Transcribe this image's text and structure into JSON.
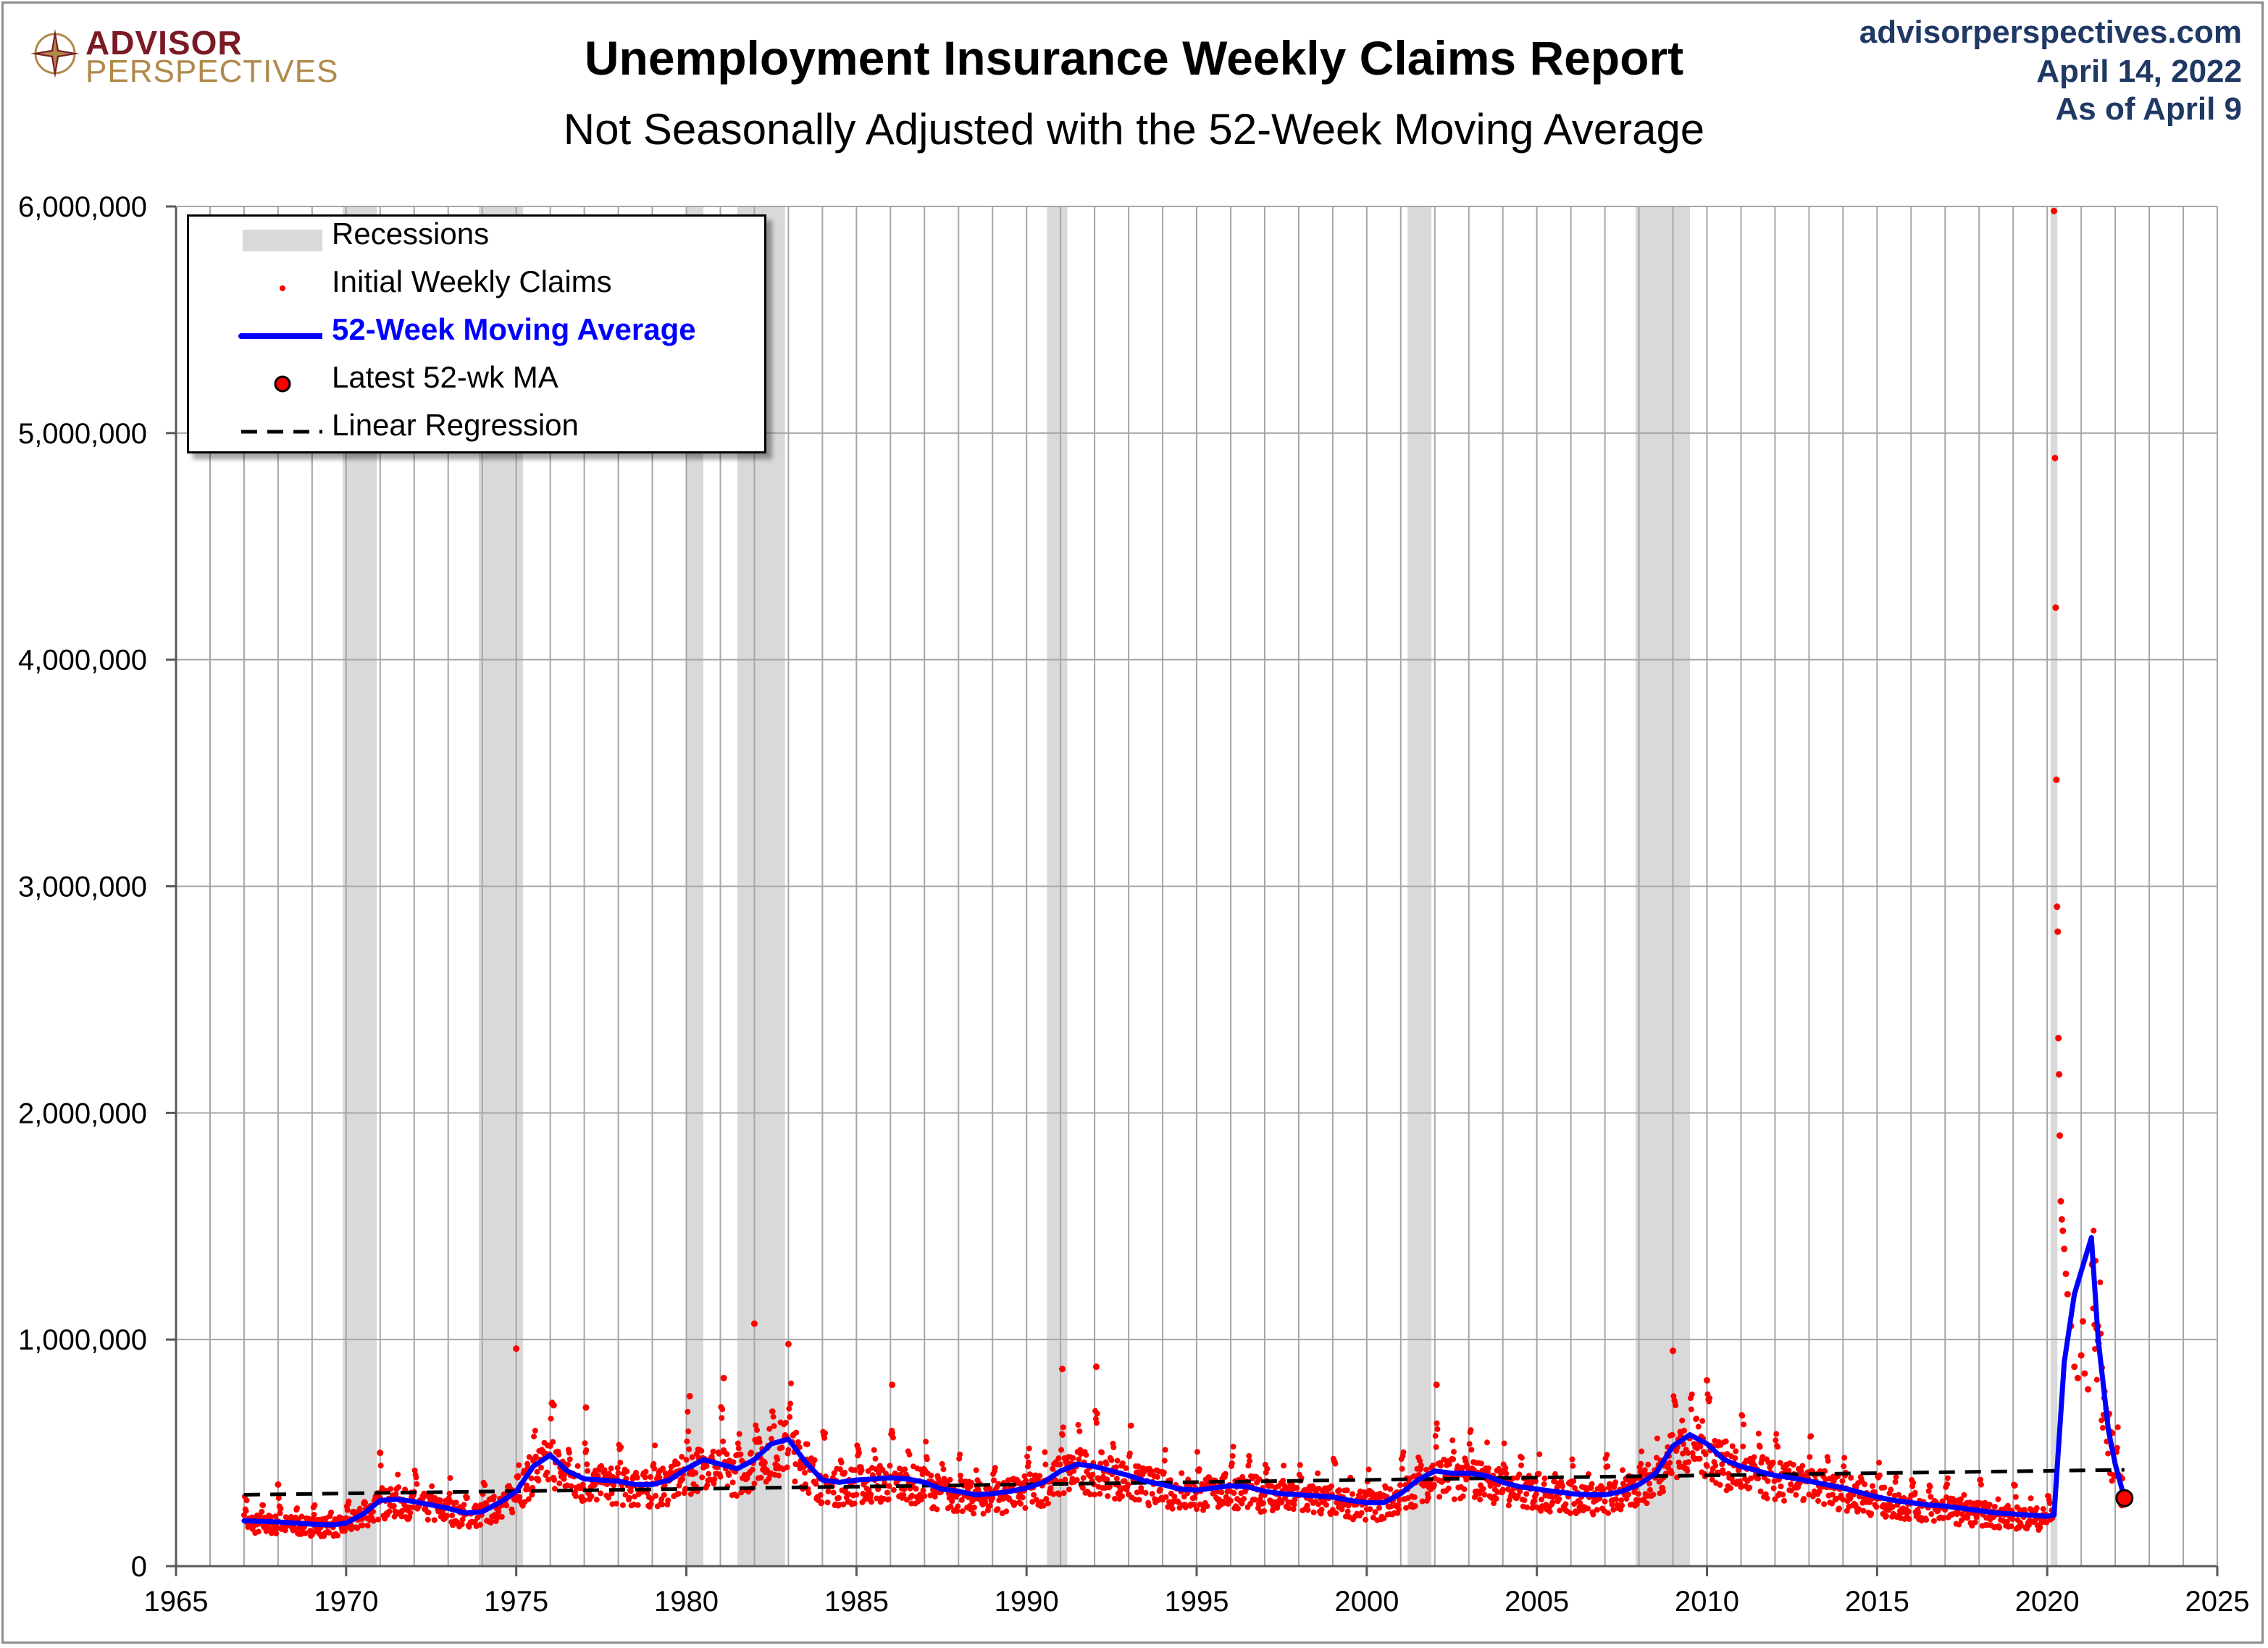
{
  "header": {
    "logo_line1": "ADVISOR",
    "logo_line2": "PERSPECTIVES",
    "title": "Unemployment Insurance Weekly Claims Report",
    "subtitle": "Not Seasonally Adjusted with the 52-Week Moving Average",
    "source_site": "advisorperspectives.com",
    "source_date": "April 14, 2022",
    "source_asof": "As of April 9"
  },
  "legend": {
    "recessions": "Recessions",
    "claims": "Initial Weekly Claims",
    "ma": "52-Week Moving Average",
    "latest": "Latest 52-wk MA",
    "regression": "Linear Regression"
  },
  "colors": {
    "claims": "#ff0000",
    "ma": "#0000ff",
    "recession": "#d9d9d9",
    "grid": "#a6a6a6",
    "regression": "#000000",
    "source_text": "#1f3864"
  },
  "chart_data": {
    "type": "line",
    "title": "Unemployment Insurance Weekly Claims Report",
    "subtitle": "Not Seasonally Adjusted with the 52-Week Moving Average",
    "xlim": [
      1965,
      2025
    ],
    "ylim": [
      0,
      6000000
    ],
    "x_ticks": [
      1965,
      1970,
      1975,
      1980,
      1985,
      1990,
      1995,
      2000,
      2005,
      2010,
      2015,
      2020,
      2025
    ],
    "x_tick_labels": [
      "1965",
      "1970",
      "1975",
      "1980",
      "1985",
      "1990",
      "1995",
      "2000",
      "2005",
      "2010",
      "2015",
      "2020",
      "2025"
    ],
    "y_ticks": [
      0,
      1000000,
      2000000,
      3000000,
      4000000,
      5000000,
      6000000
    ],
    "y_tick_labels": [
      "0",
      "1,000,000",
      "2,000,000",
      "3,000,000",
      "4,000,000",
      "5,000,000",
      "6,000,000"
    ],
    "grid": true,
    "legend_position": "top-left",
    "recessions": [
      [
        1969.9,
        1970.9
      ],
      [
        1973.9,
        1975.2
      ],
      [
        1980.0,
        1980.5
      ],
      [
        1981.5,
        1982.9
      ],
      [
        1990.6,
        1991.2
      ],
      [
        2001.2,
        2001.9
      ],
      [
        2007.9,
        2009.5
      ],
      [
        2020.1,
        2020.3
      ]
    ],
    "series": [
      {
        "name": "52-Week Moving Average",
        "x": [
          1967.0,
          1968.0,
          1968.5,
          1969.0,
          1969.6,
          1970.0,
          1970.5,
          1971.0,
          1971.5,
          1972.0,
          1972.5,
          1973.0,
          1973.5,
          1974.0,
          1974.5,
          1975.0,
          1975.5,
          1976.0,
          1976.5,
          1977.0,
          1977.5,
          1978.0,
          1978.5,
          1979.0,
          1979.5,
          1980.0,
          1980.5,
          1981.0,
          1981.5,
          1982.0,
          1982.5,
          1983.0,
          1983.5,
          1984.0,
          1984.5,
          1985.0,
          1985.5,
          1986.0,
          1986.5,
          1987.0,
          1987.5,
          1988.0,
          1988.5,
          1989.0,
          1989.5,
          1990.0,
          1990.5,
          1991.0,
          1991.5,
          1992.0,
          1992.5,
          1993.0,
          1993.5,
          1994.0,
          1994.5,
          1995.0,
          1995.5,
          1996.0,
          1996.5,
          1997.0,
          1997.5,
          1998.0,
          1998.5,
          1999.0,
          1999.5,
          2000.0,
          2000.5,
          2001.0,
          2001.5,
          2002.0,
          2002.5,
          2003.0,
          2003.5,
          2004.0,
          2004.5,
          2005.0,
          2005.5,
          2006.0,
          2006.5,
          2007.0,
          2007.5,
          2008.0,
          2008.5,
          2009.0,
          2009.5,
          2010.0,
          2010.5,
          2011.0,
          2011.5,
          2012.0,
          2012.5,
          2013.0,
          2013.5,
          2014.0,
          2014.5,
          2015.0,
          2015.5,
          2016.0,
          2016.5,
          2017.0,
          2017.5,
          2018.0,
          2018.5,
          2019.0,
          2019.5,
          2020.0,
          2020.2,
          2020.5,
          2020.8,
          2021.0,
          2021.3,
          2021.5,
          2021.8,
          2022.0,
          2022.27
        ],
        "values": [
          200000,
          195000,
          190000,
          185000,
          182000,
          190000,
          230000,
          290000,
          295000,
          285000,
          270000,
          255000,
          235000,
          240000,
          280000,
          330000,
          440000,
          490000,
          420000,
          385000,
          380000,
          375000,
          360000,
          360000,
          380000,
          430000,
          470000,
          450000,
          430000,
          470000,
          540000,
          560000,
          460000,
          380000,
          370000,
          380000,
          385000,
          390000,
          385000,
          370000,
          340000,
          330000,
          315000,
          320000,
          330000,
          345000,
          370000,
          420000,
          450000,
          440000,
          420000,
          400000,
          375000,
          360000,
          340000,
          335000,
          345000,
          355000,
          350000,
          330000,
          320000,
          315000,
          310000,
          305000,
          290000,
          280000,
          280000,
          320000,
          380000,
          420000,
          410000,
          410000,
          400000,
          370000,
          350000,
          340000,
          330000,
          320000,
          315000,
          315000,
          330000,
          360000,
          410000,
          530000,
          580000,
          540000,
          470000,
          440000,
          420000,
          400000,
          390000,
          375000,
          360000,
          345000,
          325000,
          305000,
          290000,
          280000,
          270000,
          265000,
          255000,
          245000,
          235000,
          230000,
          225000,
          220000,
          225000,
          900000,
          1200000,
          1300000,
          1450000,
          1000000,
          600000,
          450000,
          300000
        ]
      },
      {
        "name": "Linear Regression",
        "x": [
          1967.0,
          2022.27
        ],
        "values": [
          315000,
          425000
        ]
      }
    ],
    "claims_scatter": {
      "name": "Initial Weekly Claims",
      "x": [
        2020.2,
        2020.23,
        2020.25,
        2020.27,
        2020.29,
        2020.31,
        2020.33,
        2020.35,
        2020.37,
        2020.4,
        2020.43,
        2020.46,
        2020.5,
        2020.55,
        2020.6,
        2020.7,
        2020.8,
        2020.9,
        2021.0,
        2021.05,
        2021.1,
        2021.2,
        1968.0,
        1971.0,
        1975.0,
        1976.1,
        1977.05,
        1980.1,
        1981.1,
        1982.0,
        1983.0,
        1986.05,
        1991.05,
        1992.05,
        2002.05,
        2009.0,
        2010.0
      ],
      "values": [
        5980000,
        4890000,
        4230000,
        3470000,
        2910000,
        2800000,
        2330000,
        2170000,
        1900000,
        1610000,
        1530000,
        1480000,
        1400000,
        1290000,
        1200000,
        1060000,
        880000,
        830000,
        930000,
        1080000,
        850000,
        780000,
        360000,
        500000,
        960000,
        710000,
        700000,
        750000,
        830000,
        1070000,
        980000,
        800000,
        870000,
        880000,
        800000,
        950000,
        820000
      ]
    },
    "latest_point": {
      "name": "Latest 52-wk MA",
      "x": 2022.27,
      "value": 300000
    }
  }
}
